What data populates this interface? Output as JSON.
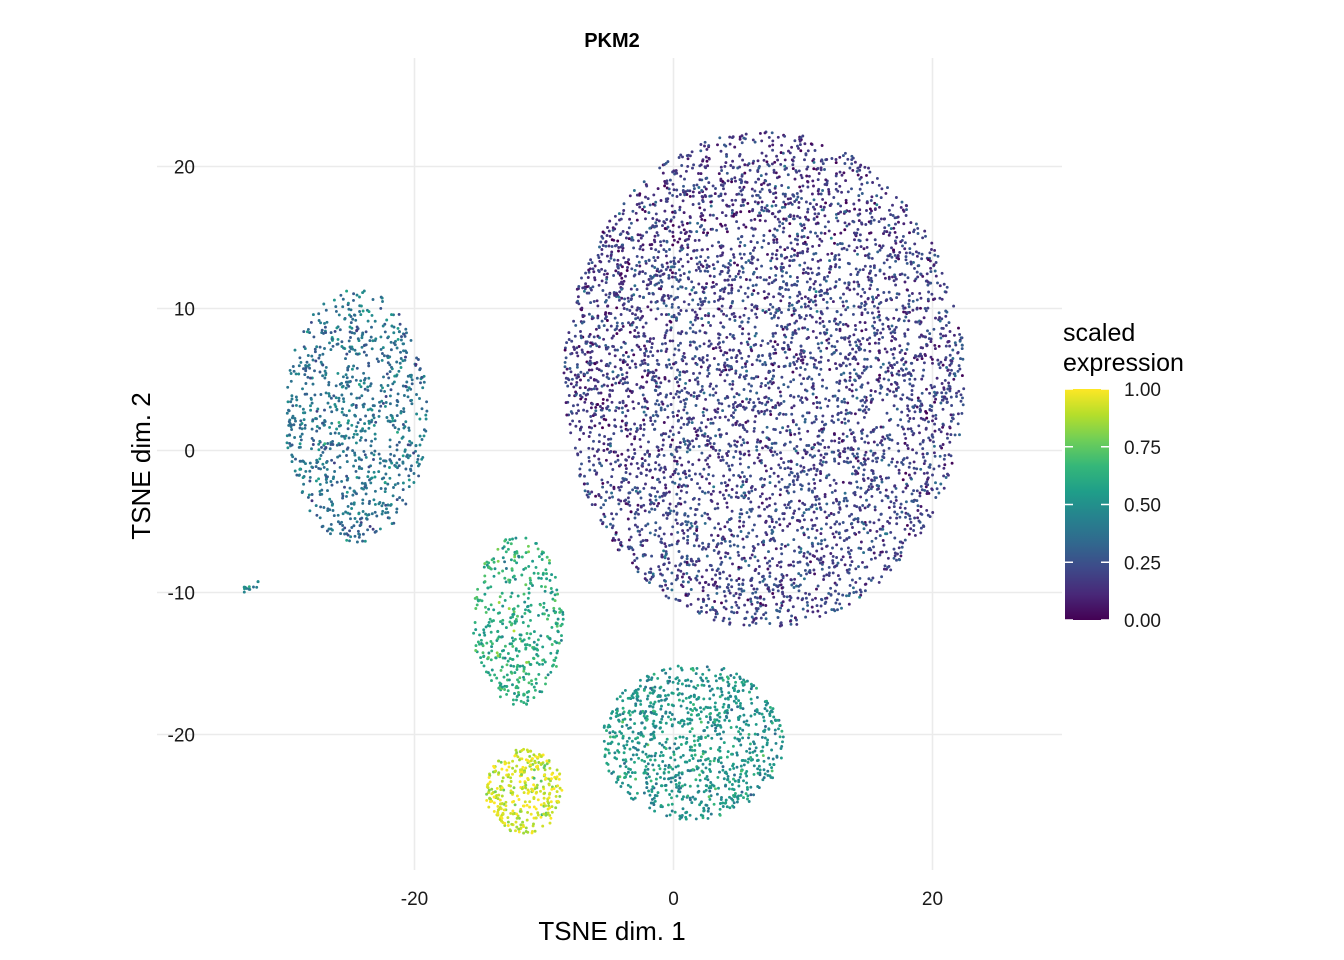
{
  "chart_data": {
    "type": "scatter",
    "title": "PKM2",
    "xlabel": "TSNE dim. 1",
    "ylabel": "TSNE dim. 2",
    "xlim": [
      -33,
      27
    ],
    "ylim": [
      -29.5,
      27.5
    ],
    "x_ticks": [
      -20,
      0,
      20
    ],
    "y_ticks": [
      -20,
      -10,
      0,
      10,
      20
    ],
    "grid": true,
    "legend": {
      "title_lines": [
        "scaled",
        "expression"
      ],
      "placement": "right",
      "ticks": [
        0.0,
        0.25,
        0.5,
        0.75,
        1.0
      ],
      "tick_labels": [
        "0.00",
        "0.25",
        "0.50",
        "0.75",
        "1.00"
      ],
      "colormap": "viridis"
    },
    "colors": {
      "viridis_stops": [
        "#440154",
        "#482878",
        "#3e4989",
        "#31688e",
        "#26828e",
        "#1f9e89",
        "#35b779",
        "#6ece58",
        "#b5de2b",
        "#fde725"
      ],
      "grid": "#ebebeb",
      "background": "#ffffff"
    },
    "clusters": [
      {
        "region": "large main cluster",
        "center": [
          7,
          5
        ],
        "spread": [
          15.5,
          17.5
        ],
        "mean_expression": 0.2
      },
      {
        "region": "left cluster",
        "center": [
          -24.5,
          2.5
        ],
        "spread": [
          5.5,
          9
        ],
        "mean_expression": 0.38
      },
      {
        "region": "lower middle cluster",
        "center": [
          1.5,
          -20.5
        ],
        "spread": [
          7,
          5.5
        ],
        "mean_expression": 0.52
      },
      {
        "region": "lower left cluster upper part",
        "center": [
          -12,
          -12
        ],
        "spread": [
          3.5,
          6
        ],
        "mean_expression": 0.62
      },
      {
        "region": "lower left cluster bottom",
        "center": [
          -11.5,
          -24
        ],
        "spread": [
          3,
          3
        ],
        "mean_expression": 0.92
      },
      {
        "region": "small outlier group",
        "center": [
          -32.5,
          -9.5
        ],
        "spread": [
          1,
          0.6
        ],
        "mean_expression": 0.5
      }
    ]
  }
}
